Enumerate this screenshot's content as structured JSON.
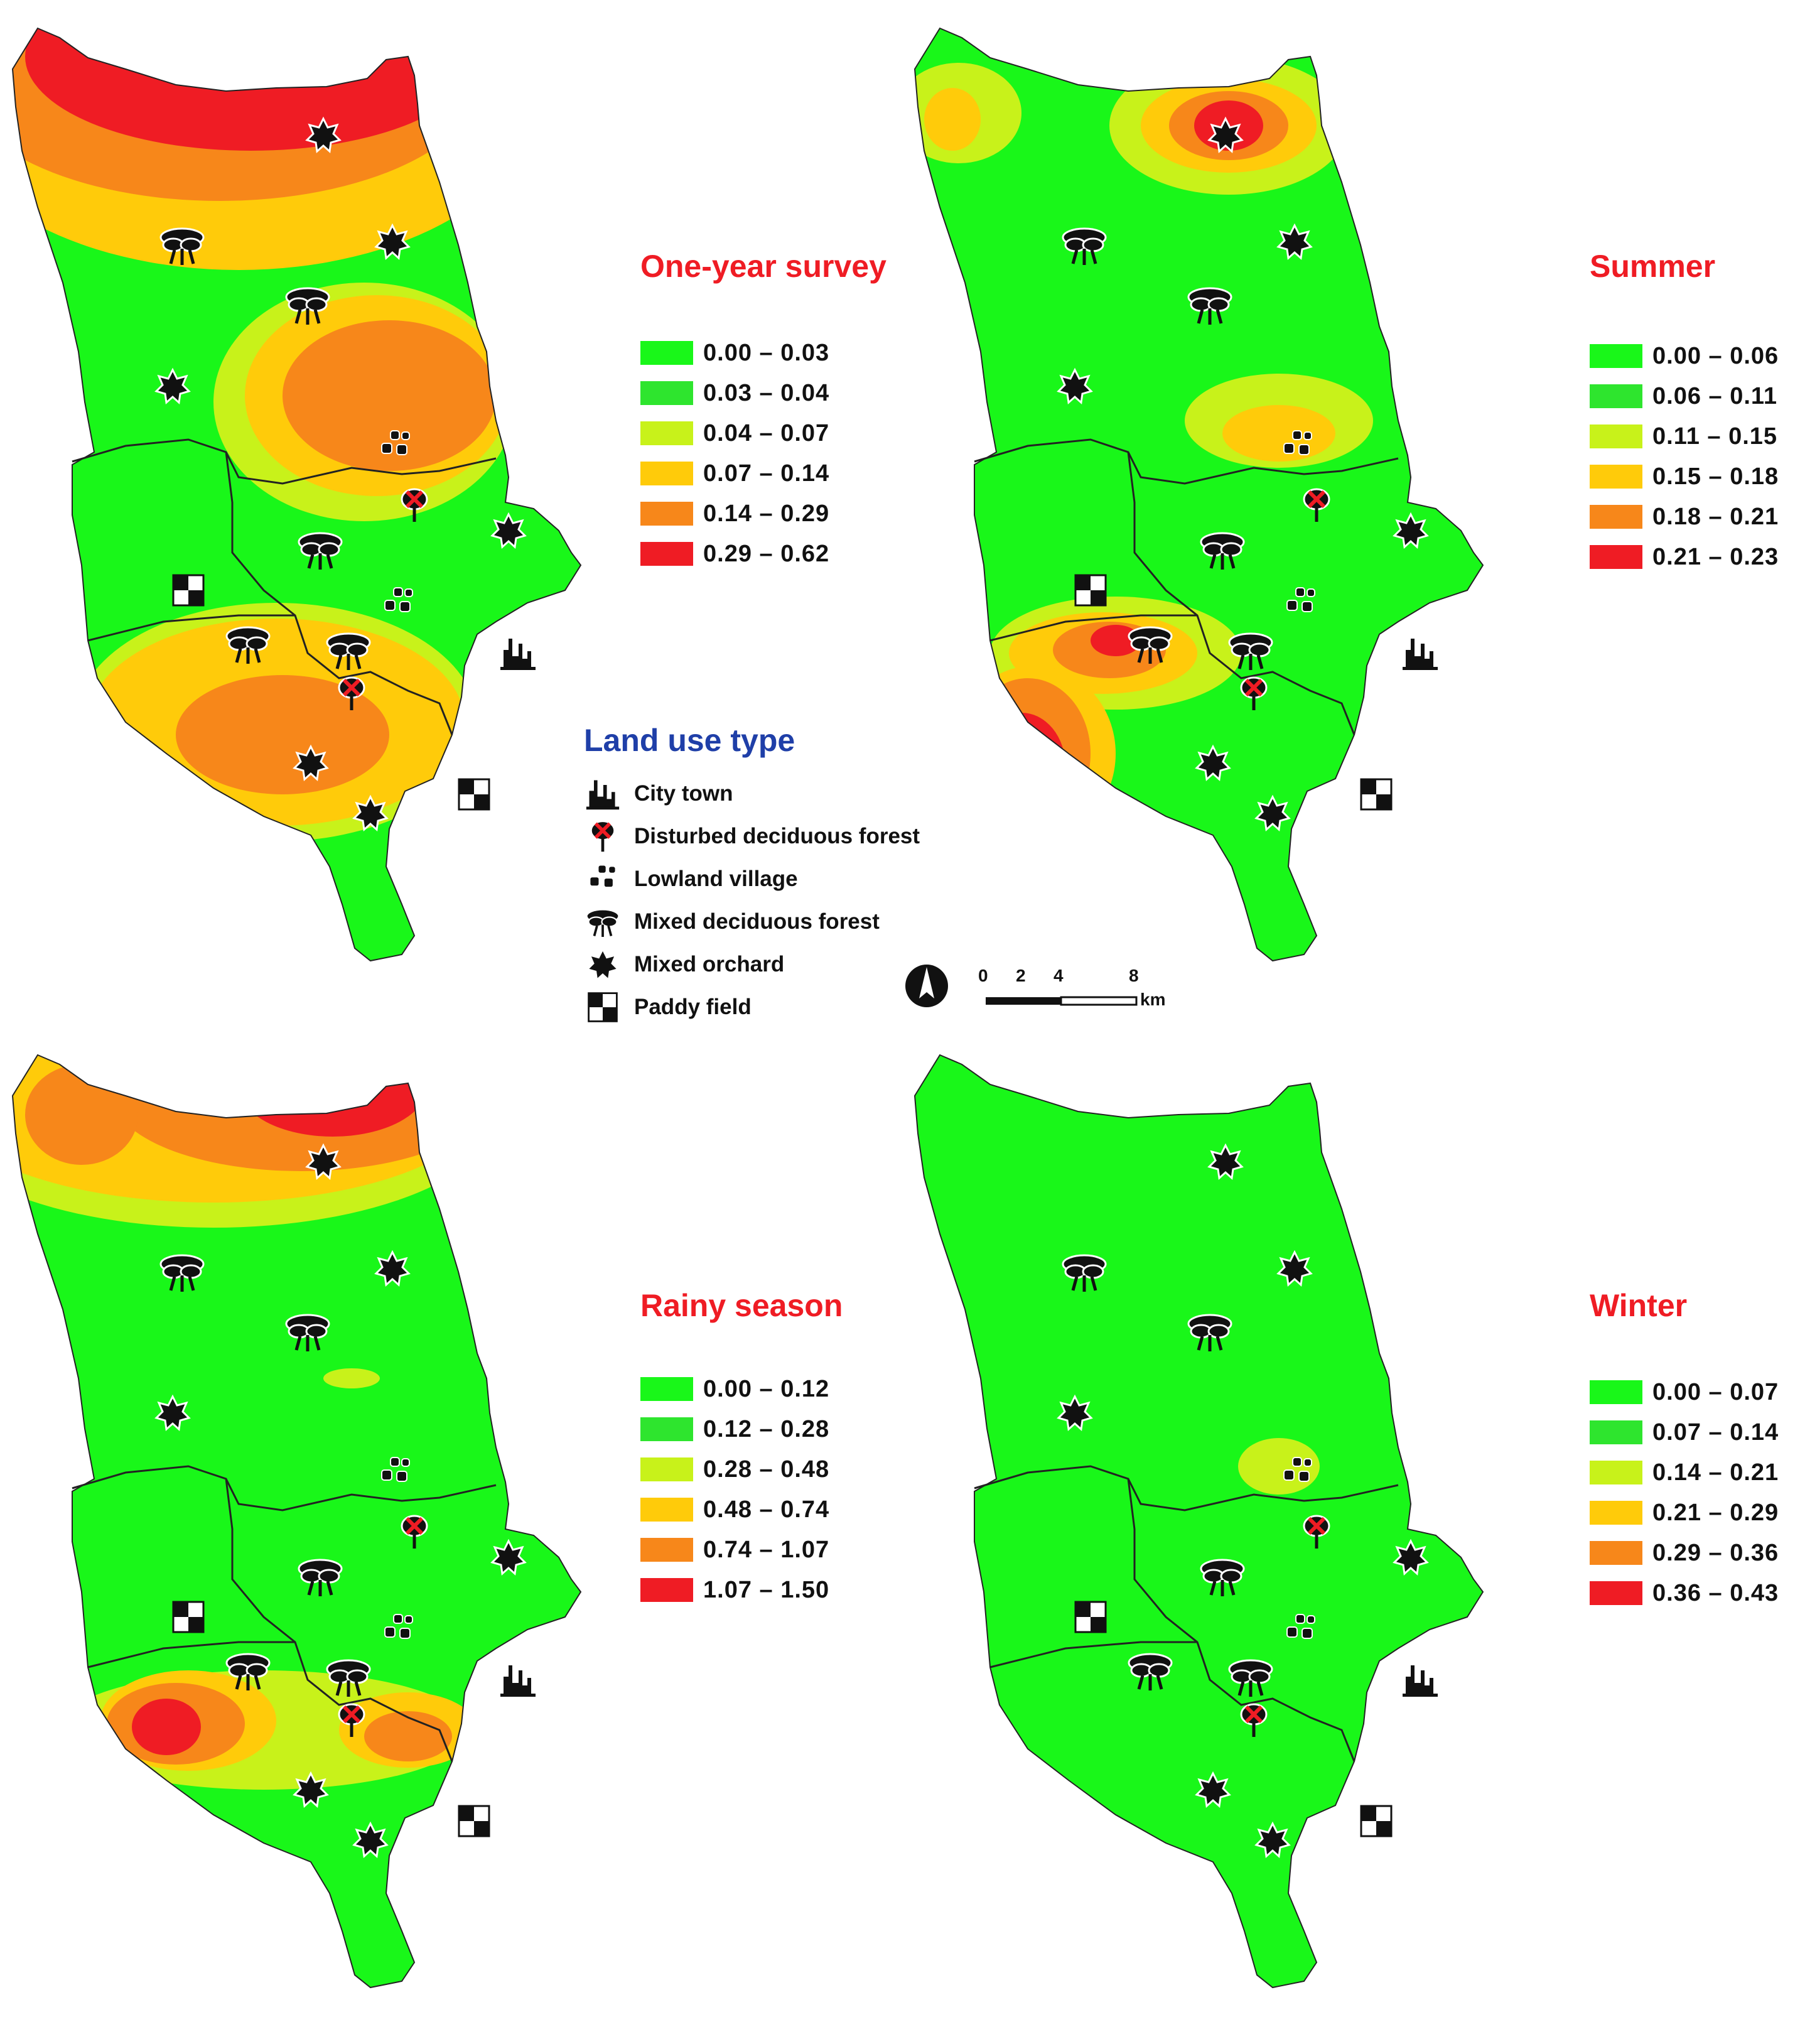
{
  "colors": {
    "class1": "#19f719",
    "class2": "#2ee52e",
    "class3": "#c8f21a",
    "class4": "#ffcb0a",
    "class5": "#f7871a",
    "class6": "#ef1c24",
    "title": "#ef1c24",
    "land_use_title": "#1f3fa8"
  },
  "panels": [
    {
      "title": "One-year survey",
      "legend": [
        "0.00 – 0.03",
        "0.03 – 0.04",
        "0.04 – 0.07",
        "0.07 – 0.14",
        "0.14 – 0.29",
        "0.29 – 0.62"
      ]
    },
    {
      "title": "Summer",
      "legend": [
        "0.00 – 0.06",
        "0.06 – 0.11",
        "0.11 – 0.15",
        "0.15 – 0.18",
        "0.18 – 0.21",
        "0.21 – 0.23"
      ]
    },
    {
      "title": "Rainy season",
      "legend": [
        "0.00 – 0.12",
        "0.12 – 0.28",
        "0.28 – 0.48",
        "0.48 – 0.74",
        "0.74 – 1.07",
        "1.07 – 1.50"
      ]
    },
    {
      "title": "Winter",
      "legend": [
        "0.00 – 0.07",
        "0.07 – 0.14",
        "0.14 – 0.21",
        "0.21 – 0.29",
        "0.29 – 0.36",
        "0.36 – 0.43"
      ]
    }
  ],
  "land_use": {
    "title": "Land use type",
    "items": [
      {
        "label": "City town",
        "icon": "city-town-icon"
      },
      {
        "label": "Disturbed deciduous forest",
        "icon": "disturbed-forest-icon"
      },
      {
        "label": "Lowland village",
        "icon": "lowland-village-icon"
      },
      {
        "label": "Mixed deciduous forest",
        "icon": "mixed-forest-icon"
      },
      {
        "label": "Mixed orchard",
        "icon": "mixed-orchard-icon"
      },
      {
        "label": "Paddy field",
        "icon": "paddy-field-icon"
      }
    ]
  },
  "scale_bar": {
    "ticks": [
      "0",
      "2",
      "4",
      "8"
    ],
    "unit": "km"
  },
  "north_arrow": "north-arrow-icon"
}
